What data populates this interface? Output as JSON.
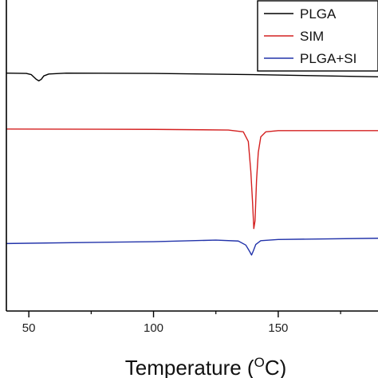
{
  "chart_data": {
    "type": "line",
    "xlabel": "Temperature (",
    "xlabel_sup": "O",
    "xlabel_unit": "C)",
    "ylabel": "",
    "xlim": [
      41,
      190
    ],
    "ylim": [
      0,
      100
    ],
    "x_ticks": [
      50,
      100,
      150
    ],
    "x_minor_ticks": [
      75,
      125,
      175
    ],
    "grid": false,
    "legend_position": "top-right",
    "series": [
      {
        "name": "PLGA",
        "color": "#000000",
        "points": [
          [
            41,
            76.5
          ],
          [
            49,
            76.4
          ],
          [
            51,
            76.0
          ],
          [
            53,
            74.5
          ],
          [
            54,
            74.0
          ],
          [
            55,
            74.5
          ],
          [
            56,
            75.6
          ],
          [
            58,
            76.2
          ],
          [
            65,
            76.5
          ],
          [
            100,
            76.4
          ],
          [
            140,
            76.0
          ],
          [
            190,
            75.3
          ]
        ]
      },
      {
        "name": "SIM",
        "color": "#d42020",
        "points": [
          [
            41,
            58.5
          ],
          [
            100,
            58.4
          ],
          [
            130,
            58.2
          ],
          [
            136,
            57.6
          ],
          [
            138,
            54.5
          ],
          [
            139,
            45
          ],
          [
            139.7,
            35
          ],
          [
            140.2,
            26.5
          ],
          [
            140.7,
            29
          ],
          [
            141.3,
            42
          ],
          [
            142,
            51
          ],
          [
            143,
            56
          ],
          [
            145,
            57.6
          ],
          [
            150,
            58.0
          ],
          [
            190,
            58.0
          ]
        ]
      },
      {
        "name": "PLGA+SI",
        "color": "#2233aa",
        "points": [
          [
            41,
            21.7
          ],
          [
            100,
            22.3
          ],
          [
            125,
            22.8
          ],
          [
            134,
            22.5
          ],
          [
            137,
            21.2
          ],
          [
            138.5,
            19.2
          ],
          [
            139.3,
            18.0
          ],
          [
            140,
            19.3
          ],
          [
            141,
            21.4
          ],
          [
            143,
            22.6
          ],
          [
            150,
            23.0
          ],
          [
            190,
            23.4
          ]
        ]
      }
    ]
  }
}
